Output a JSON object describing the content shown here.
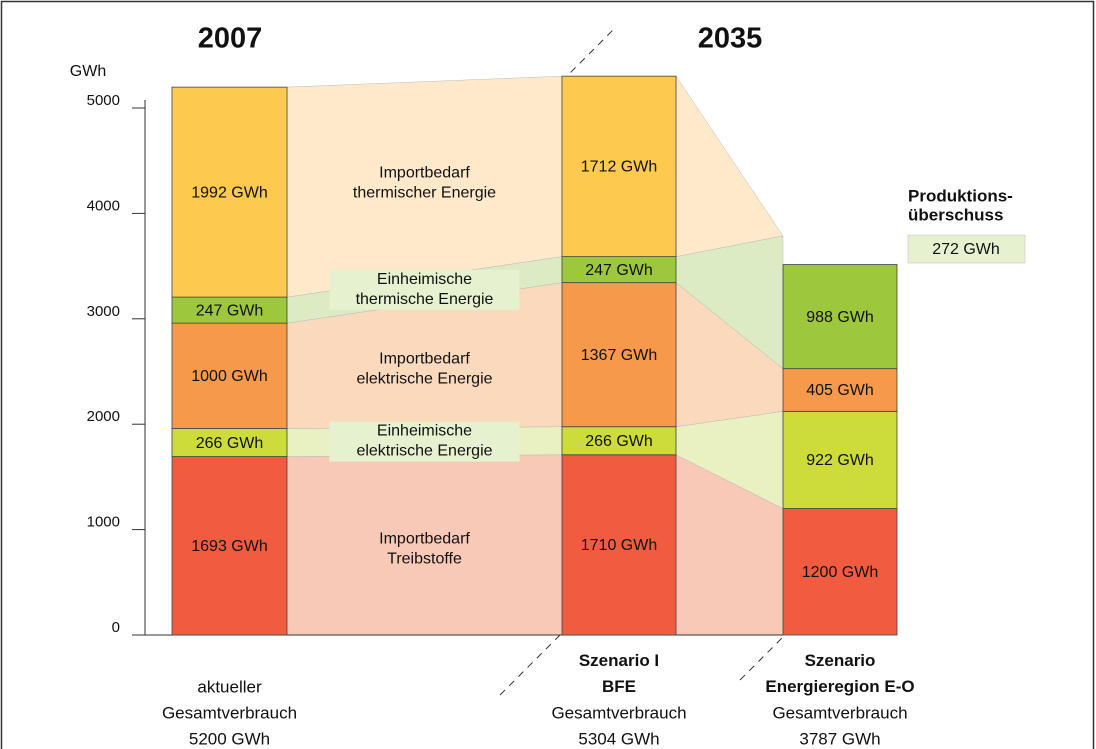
{
  "chart_data": {
    "type": "stacked_flow_bar",
    "y_axis_label": "GWh",
    "headers": [
      "2007",
      "2035"
    ],
    "categories": [
      "aktueller",
      "Szenario I\nBFE",
      "Szenario\nEnergieregion E-O"
    ],
    "category_bold": [
      false,
      true,
      true
    ],
    "sublabels": [
      "Gesamtverbrauch",
      "Gesamtverbrauch",
      "Gesamtverbrauch"
    ],
    "total_labels": [
      "5200 GWh",
      "5304 GWh",
      "3787 GWh"
    ],
    "ylim": [
      0,
      5000
    ],
    "yticks": [
      0,
      1000,
      2000,
      3000,
      4000,
      5000
    ],
    "series": [
      {
        "name": "Importbedarf\nTreibstoffe",
        "boxed": false,
        "color": "#f15c41",
        "flow_color": "#f9c9b7",
        "values": [
          1693,
          1710,
          1200
        ],
        "value_labels": [
          "1693 GWh",
          "1710 GWh",
          "1200 GWh"
        ]
      },
      {
        "name": "Einheimische\nelektrische Energie",
        "boxed": true,
        "color": "#cddc3b",
        "flow_color": "#e9f1c2",
        "values": [
          266,
          266,
          922
        ],
        "value_labels": [
          "266 GWh",
          "266 GWh",
          "922 GWh"
        ]
      },
      {
        "name": "Importbedarf\nelektrische Energie",
        "boxed": false,
        "color": "#f6994b",
        "flow_color": "#fbd9bd",
        "values": [
          1000,
          1367,
          405
        ],
        "value_labels": [
          "1000 GWh",
          "1367 GWh",
          "405 GWh"
        ]
      },
      {
        "name": "Einheimische\nthermische Energie",
        "boxed": true,
        "color": "#9dc73d",
        "flow_color": "#dcebc3",
        "values": [
          247,
          247,
          988
        ],
        "value_labels": [
          "247 GWh",
          "247 GWh",
          "988 GWh"
        ]
      },
      {
        "name": "Importbedarf\nthermischer Energie",
        "boxed": false,
        "color": "#fdc94f",
        "flow_color": "#feeacb",
        "values": [
          1992,
          1712,
          null
        ],
        "value_labels": [
          "1992 GWh",
          "1712 GWh",
          null
        ]
      }
    ],
    "surplus": {
      "label": "Produktions-\nüberschuss",
      "value": 272,
      "value_label": "272 GWh",
      "color": "#e6f1cf"
    }
  }
}
